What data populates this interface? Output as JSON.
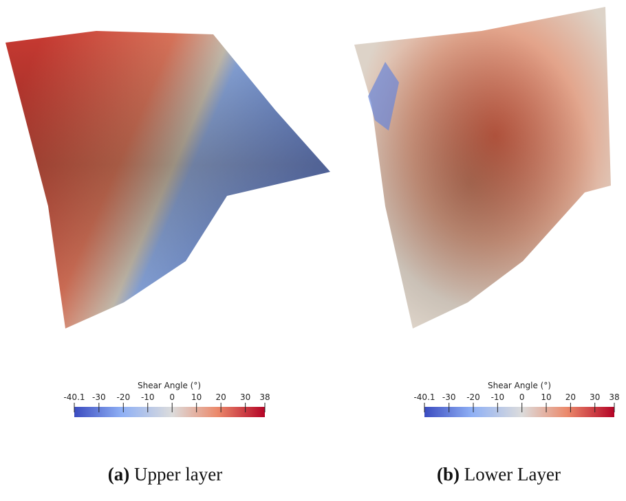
{
  "panels": [
    {
      "colorbar": {
        "title": "Shear Angle (°)",
        "range": [
          -40.1,
          38
        ],
        "ticks": [
          -40.1,
          -30,
          -20,
          -10,
          0,
          10,
          20,
          30,
          38
        ]
      },
      "caption": {
        "label": "(a)",
        "text": "Upper layer"
      }
    },
    {
      "colorbar": {
        "title": "Shear Angle (°)",
        "range": [
          -40.1,
          38
        ],
        "ticks": [
          -40.1,
          -30,
          -20,
          -10,
          0,
          10,
          20,
          30,
          38
        ]
      },
      "caption": {
        "label": "(b)",
        "text": "Lower Layer"
      }
    }
  ]
}
